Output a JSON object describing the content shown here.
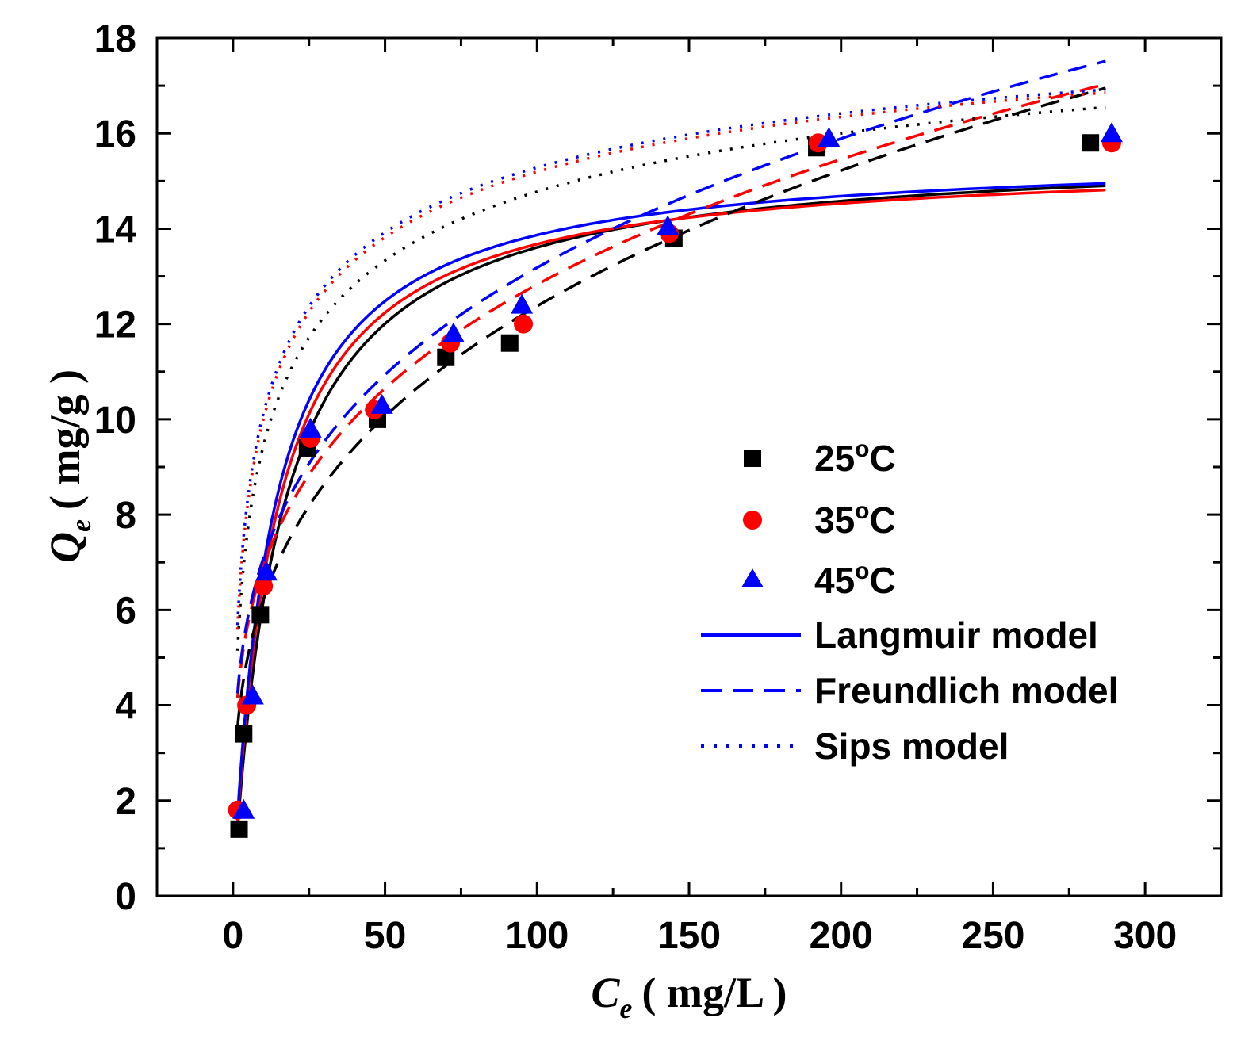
{
  "chart_data": {
    "type": "scatter",
    "title": "",
    "xlabel": {
      "symbol": "C",
      "subscript": "e",
      "unit": "( mg/L )"
    },
    "ylabel": {
      "symbol": "Q",
      "subscript": "e",
      "unit": "( mg/g )"
    },
    "xlim": [
      -25,
      325
    ],
    "ylim": [
      0,
      18
    ],
    "xticks": [
      0,
      50,
      100,
      150,
      200,
      250,
      300
    ],
    "yticks": [
      0,
      2,
      4,
      6,
      8,
      10,
      12,
      14,
      16,
      18
    ],
    "grid": false,
    "legend_position": "right-center",
    "colors": {
      "t25": "#000000",
      "t35": "#ff0000",
      "t45": "#0000ff"
    },
    "series": [
      {
        "name": "25°C",
        "label_num": "25",
        "label_sup": "o",
        "label_unit": "C",
        "color_key": "t25",
        "marker": "square",
        "x": [
          2,
          3.5,
          9,
          24.5,
          47.5,
          70,
          91,
          145,
          192,
          282
        ],
        "y": [
          1.4,
          3.4,
          5.9,
          9.4,
          10.0,
          11.3,
          11.6,
          13.8,
          15.7,
          15.8
        ]
      },
      {
        "name": "35°C",
        "label_num": "35",
        "label_sup": "o",
        "label_unit": "C",
        "color_key": "t35",
        "marker": "circle",
        "x": [
          1.5,
          4.5,
          10,
          25.5,
          46.5,
          71.5,
          95.5,
          143.5,
          192.5,
          289
        ],
        "y": [
          1.8,
          4.0,
          6.5,
          9.6,
          10.2,
          11.6,
          12.0,
          13.9,
          15.8,
          15.8
        ]
      },
      {
        "name": "45°C",
        "label_num": "45",
        "label_sup": "o",
        "label_unit": "C",
        "color_key": "t45",
        "marker": "triangle",
        "x": [
          3.5,
          6.5,
          11,
          25.5,
          49,
          72.5,
          95,
          143,
          196,
          289
        ],
        "y": [
          1.8,
          4.2,
          6.8,
          9.8,
          10.3,
          11.8,
          12.4,
          14.05,
          15.9,
          16.0
        ]
      }
    ],
    "models": [
      {
        "name": "Langmuir model",
        "dash": "solid",
        "fits": [
          {
            "color_key": "t25",
            "qm": 15.7,
            "kl": 0.065
          },
          {
            "color_key": "t35",
            "qm": 15.5,
            "kl": 0.075
          },
          {
            "color_key": "t45",
            "qm": 15.6,
            "kl": 0.08
          }
        ]
      },
      {
        "name": "Freundlich model",
        "dash": "dashed",
        "fits": [
          {
            "color_key": "t25",
            "kf": 3.13,
            "n": 3.35
          },
          {
            "color_key": "t35",
            "kf": 3.72,
            "n": 3.72
          },
          {
            "color_key": "t45",
            "kf": 3.81,
            "n": 3.71
          }
        ]
      },
      {
        "name": "Sips model",
        "dash": "dotted",
        "fits": [
          {
            "color_key": "t25",
            "qm": 20.0,
            "ks": 0.08,
            "ns": 0.5
          },
          {
            "color_key": "t35",
            "qm": 20.0,
            "ks": 0.1,
            "ns": 0.5
          },
          {
            "color_key": "t45",
            "qm": 20.0,
            "ks": 0.105,
            "ns": 0.5
          }
        ]
      }
    ],
    "fit_range": [
      1.5,
      287
    ]
  }
}
